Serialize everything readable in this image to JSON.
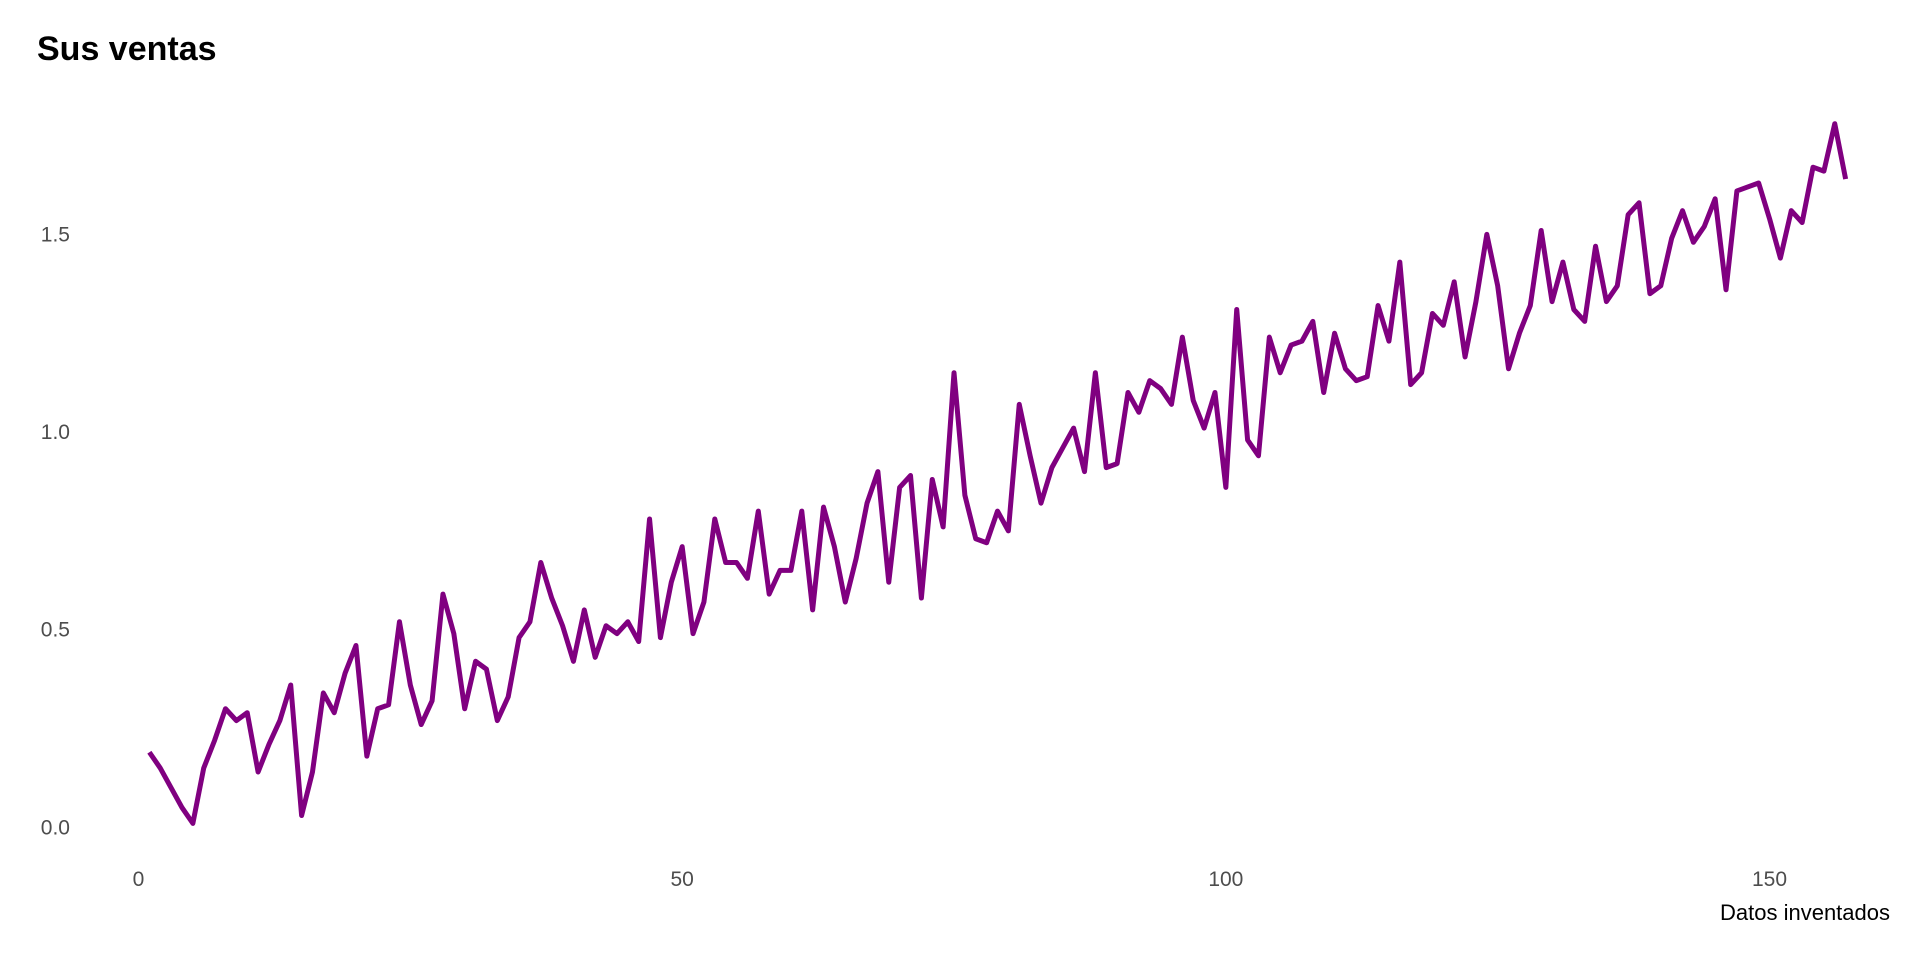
{
  "chart_data": {
    "type": "line",
    "title": "Sus ventas",
    "caption": "Datos inventados",
    "xlabel": "",
    "ylabel": "",
    "grid": false,
    "legend": "none",
    "line_color": "#800080",
    "xlim": [
      -4,
      162
    ],
    "ylim": [
      -0.07,
      1.84
    ],
    "x_ticks": [
      0,
      50,
      100,
      150
    ],
    "x_tick_labels": [
      "0",
      "50",
      "100",
      "150"
    ],
    "y_ticks": [
      0.0,
      0.5,
      1.0,
      1.5
    ],
    "y_tick_labels": [
      "0.0",
      "0.5",
      "1.0",
      "1.5"
    ],
    "x_start": 1,
    "series": [
      {
        "values": [
          0.19,
          0.15,
          0.1,
          0.05,
          0.01,
          0.15,
          0.22,
          0.3,
          0.27,
          0.29,
          0.14,
          0.21,
          0.27,
          0.36,
          0.03,
          0.14,
          0.34,
          0.29,
          0.39,
          0.46,
          0.18,
          0.3,
          0.31,
          0.52,
          0.36,
          0.26,
          0.32,
          0.59,
          0.49,
          0.3,
          0.42,
          0.4,
          0.27,
          0.33,
          0.48,
          0.52,
          0.67,
          0.58,
          0.51,
          0.42,
          0.55,
          0.43,
          0.51,
          0.49,
          0.52,
          0.47,
          0.78,
          0.48,
          0.62,
          0.71,
          0.49,
          0.57,
          0.78,
          0.67,
          0.67,
          0.63,
          0.8,
          0.59,
          0.65,
          0.65,
          0.8,
          0.55,
          0.81,
          0.71,
          0.57,
          0.68,
          0.82,
          0.9,
          0.62,
          0.86,
          0.89,
          0.58,
          0.88,
          0.76,
          1.15,
          0.84,
          0.73,
          0.72,
          0.8,
          0.75,
          1.07,
          0.94,
          0.82,
          0.91,
          0.96,
          1.01,
          0.9,
          1.15,
          0.91,
          0.92,
          1.1,
          1.05,
          1.13,
          1.11,
          1.07,
          1.24,
          1.08,
          1.01,
          1.1,
          0.86,
          1.31,
          0.98,
          0.94,
          1.24,
          1.15,
          1.22,
          1.23,
          1.28,
          1.1,
          1.25,
          1.16,
          1.13,
          1.14,
          1.32,
          1.23,
          1.43,
          1.12,
          1.15,
          1.3,
          1.27,
          1.38,
          1.19,
          1.33,
          1.5,
          1.37,
          1.16,
          1.25,
          1.32,
          1.51,
          1.33,
          1.43,
          1.31,
          1.28,
          1.47,
          1.33,
          1.37,
          1.55,
          1.58,
          1.35,
          1.37,
          1.49,
          1.56,
          1.48,
          1.52,
          1.59,
          1.36,
          1.61,
          1.62,
          1.63,
          1.54,
          1.44,
          1.56,
          1.53,
          1.67,
          1.66,
          1.78,
          1.64
        ]
      }
    ]
  }
}
